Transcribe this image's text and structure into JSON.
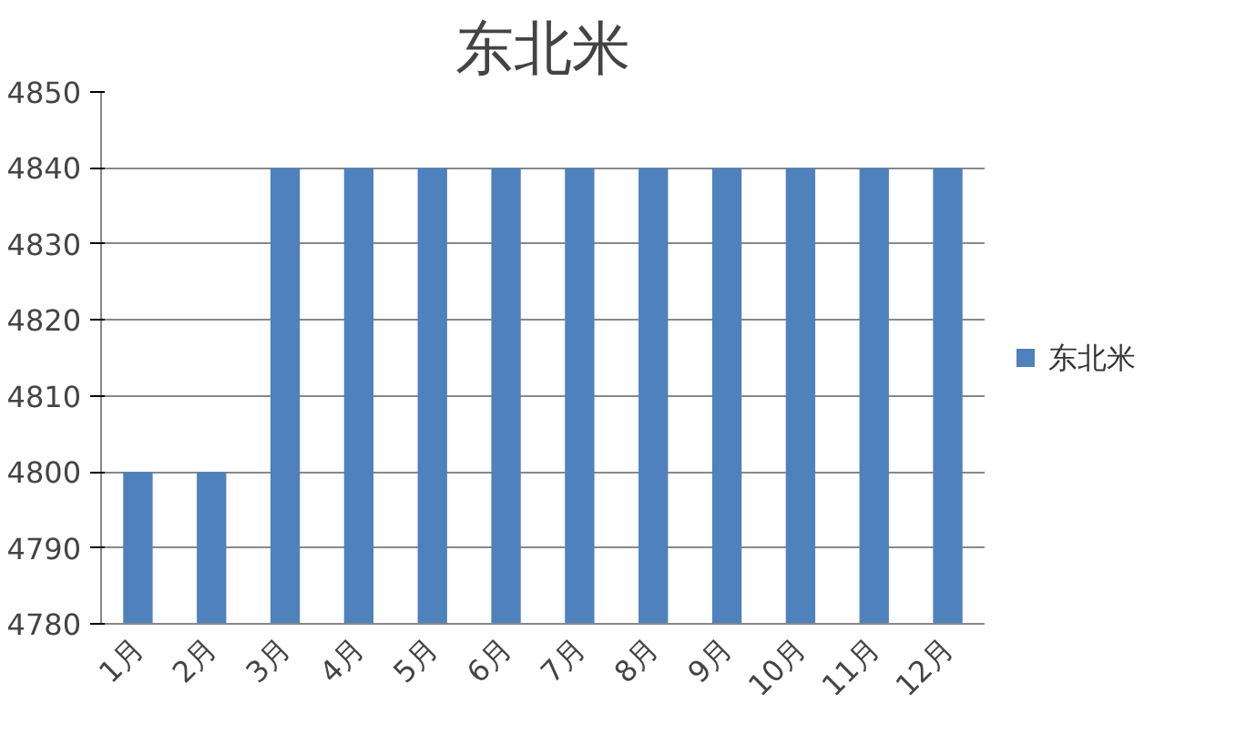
{
  "chart_data": {
    "type": "bar",
    "title": "东北米",
    "categories": [
      "1月",
      "2月",
      "3月",
      "4月",
      "5月",
      "6月",
      "7月",
      "8月",
      "9月",
      "10月",
      "11月",
      "12月"
    ],
    "series": [
      {
        "name": "东北米",
        "color": "#4f81bd",
        "values": [
          4800,
          4800,
          4840,
          4840,
          4840,
          4840,
          4840,
          4840,
          4840,
          4840,
          4840,
          4840
        ]
      }
    ],
    "ylim": [
      4780,
      4850
    ],
    "yticks": [
      4780,
      4790,
      4800,
      4810,
      4820,
      4830,
      4840,
      4850
    ],
    "grid": "y",
    "legend": "right"
  }
}
